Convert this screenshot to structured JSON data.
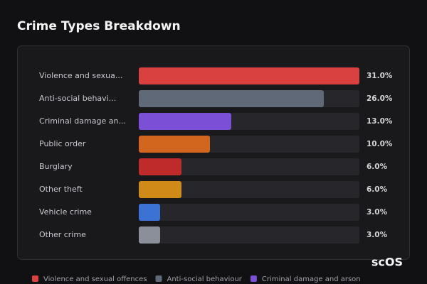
{
  "chart_data": {
    "type": "bar",
    "orientation": "horizontal",
    "title": "Crime Types Breakdown",
    "categories": [
      "Violence and sexua...",
      "Anti-social behavi...",
      "Criminal damage an...",
      "Public order",
      "Burglary",
      "Other theft",
      "Vehicle crime",
      "Other crime"
    ],
    "values": [
      31,
      26,
      13,
      10,
      6,
      6,
      3,
      3
    ],
    "value_labels": [
      "31.0%",
      "26.0%",
      "13.0%",
      "10.0%",
      "6.0%",
      "6.0%",
      "3.0%",
      "3.0%"
    ],
    "colors": [
      "#d94141",
      "#5f6978",
      "#7b4fd6",
      "#d2661f",
      "#bf2a2b",
      "#d08a17",
      "#3b72d4",
      "#8a8f9a"
    ],
    "xlim": [
      0,
      31
    ],
    "legend": [
      "Violence and sexual offences",
      "Anti-social behaviour",
      "Criminal damage and arson"
    ],
    "watermark": "scOS"
  }
}
